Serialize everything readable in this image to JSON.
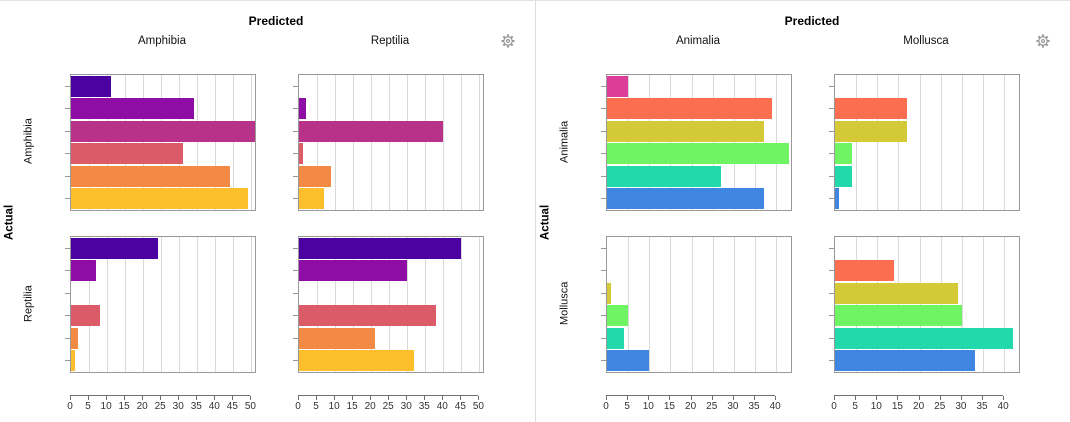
{
  "icons": {
    "settings": "gear"
  },
  "colors": {
    "panel_divider": "#dddddd",
    "subplot_border": "#999999",
    "gridline": "#d9d9d9",
    "axis_line": "#6e6e6e",
    "axis_text": "#333333",
    "icon": "#999999"
  },
  "chart_data": [
    {
      "type": "bar",
      "orientation": "horizontal",
      "title": "Predicted",
      "row_axis_label": "Actual",
      "columns": [
        "Amphibia",
        "Reptilia"
      ],
      "rows": [
        "Amphibia",
        "Reptilia"
      ],
      "x_ticks": [
        0,
        5,
        10,
        15,
        20,
        25,
        30,
        35,
        40,
        45,
        50
      ],
      "xlim": [
        0,
        51
      ],
      "grid": true,
      "series_colors": [
        "#4C02A1",
        "#8E0DA4",
        "#B93289",
        "#DB5C68",
        "#F28A45",
        "#FDBE2C"
      ],
      "cells": [
        {
          "actual": "Amphibia",
          "predicted": "Amphibia",
          "values": [
            11,
            34,
            51,
            31,
            44,
            49
          ]
        },
        {
          "actual": "Amphibia",
          "predicted": "Reptilia",
          "values": [
            0,
            2,
            40,
            1,
            9,
            7
          ]
        },
        {
          "actual": "Reptilia",
          "predicted": "Amphibia",
          "values": [
            24,
            7,
            0,
            8,
            2,
            1
          ]
        },
        {
          "actual": "Reptilia",
          "predicted": "Reptilia",
          "values": [
            45,
            30,
            0,
            38,
            21,
            32
          ]
        }
      ]
    },
    {
      "type": "bar",
      "orientation": "horizontal",
      "title": "Predicted",
      "row_axis_label": "Actual",
      "columns": [
        "Animalia",
        "Mollusca"
      ],
      "rows": [
        "Animalia",
        "Mollusca"
      ],
      "x_ticks": [
        0,
        5,
        10,
        15,
        20,
        25,
        30,
        35,
        40
      ],
      "xlim": [
        0,
        43.5
      ],
      "grid": true,
      "series_colors": [
        "#DD3D96",
        "#FC6E50",
        "#D4C937",
        "#6FF463",
        "#22D9AC",
        "#3E86E0"
      ],
      "cells": [
        {
          "actual": "Animalia",
          "predicted": "Animalia",
          "values": [
            5,
            39,
            37,
            43,
            27,
            37
          ]
        },
        {
          "actual": "Animalia",
          "predicted": "Mollusca",
          "values": [
            0,
            17,
            17,
            4,
            4,
            1
          ]
        },
        {
          "actual": "Mollusca",
          "predicted": "Animalia",
          "values": [
            0,
            0,
            1,
            5,
            4,
            10
          ]
        },
        {
          "actual": "Mollusca",
          "predicted": "Mollusca",
          "values": [
            0,
            14,
            29,
            30,
            42,
            33
          ]
        }
      ]
    }
  ]
}
